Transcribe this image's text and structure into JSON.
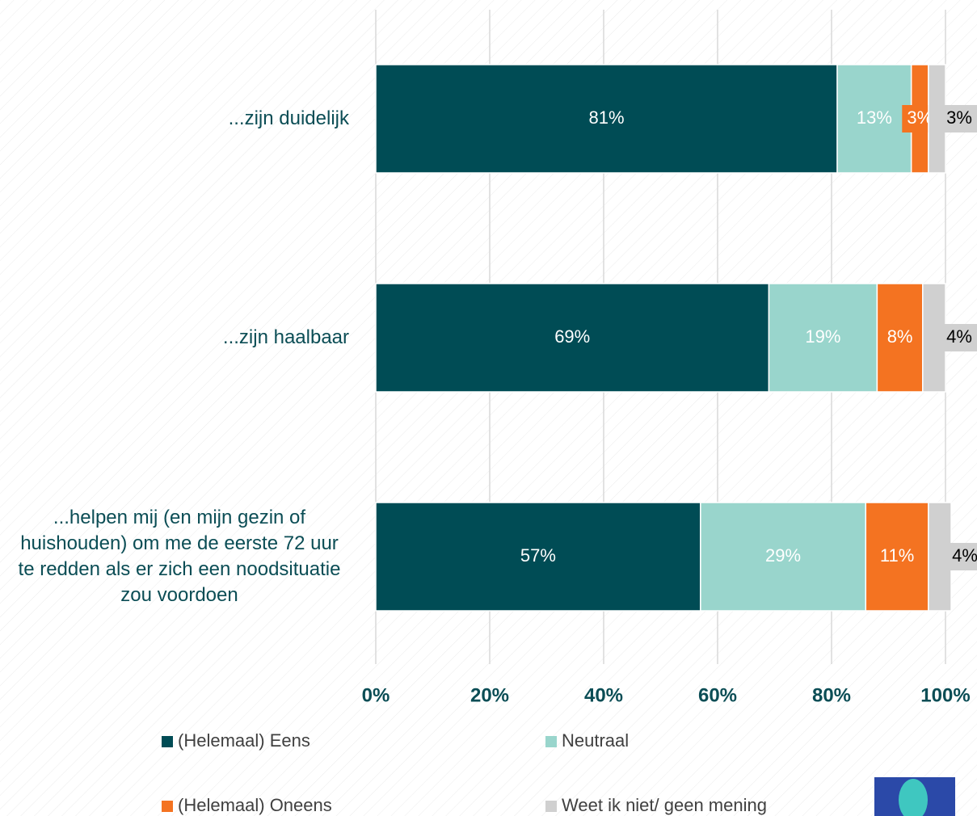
{
  "chart_data": {
    "type": "stacked-barh",
    "categories": [
      "...zijn duidelijk",
      "...zijn haalbaar",
      "...helpen mij (en mijn gezin of huishouden) om me de eerste 72 uur te redden als er zich een noodsituatie zou voordoen"
    ],
    "series": [
      {
        "name": "(Helemaal) Eens",
        "color": "#004c55",
        "values": [
          81,
          69,
          57
        ],
        "value_labels": [
          "81%",
          "69%",
          "57%"
        ]
      },
      {
        "name": "Neutraal",
        "color": "#99d5cc",
        "values": [
          13,
          19,
          29
        ],
        "value_labels": [
          "13%",
          "19%",
          "29%"
        ]
      },
      {
        "name": "(Helemaal) Oneens",
        "color": "#f47321",
        "values": [
          3,
          8,
          11
        ],
        "value_labels": [
          "3%",
          "8%",
          "11%"
        ]
      },
      {
        "name": "Weet ik niet/ geen mening",
        "color": "#d0d0d0",
        "values": [
          3,
          4,
          4
        ],
        "value_labels": [
          "3%",
          "4%",
          "4%"
        ]
      }
    ],
    "xlim": [
      0,
      100
    ],
    "xticks": [
      {
        "value": 0,
        "label": "0%"
      },
      {
        "value": 20,
        "label": "20%"
      },
      {
        "value": 40,
        "label": "40%"
      },
      {
        "value": 60,
        "label": "60%"
      },
      {
        "value": 80,
        "label": "80%"
      },
      {
        "value": 100,
        "label": "100%"
      }
    ],
    "grid": true
  }
}
